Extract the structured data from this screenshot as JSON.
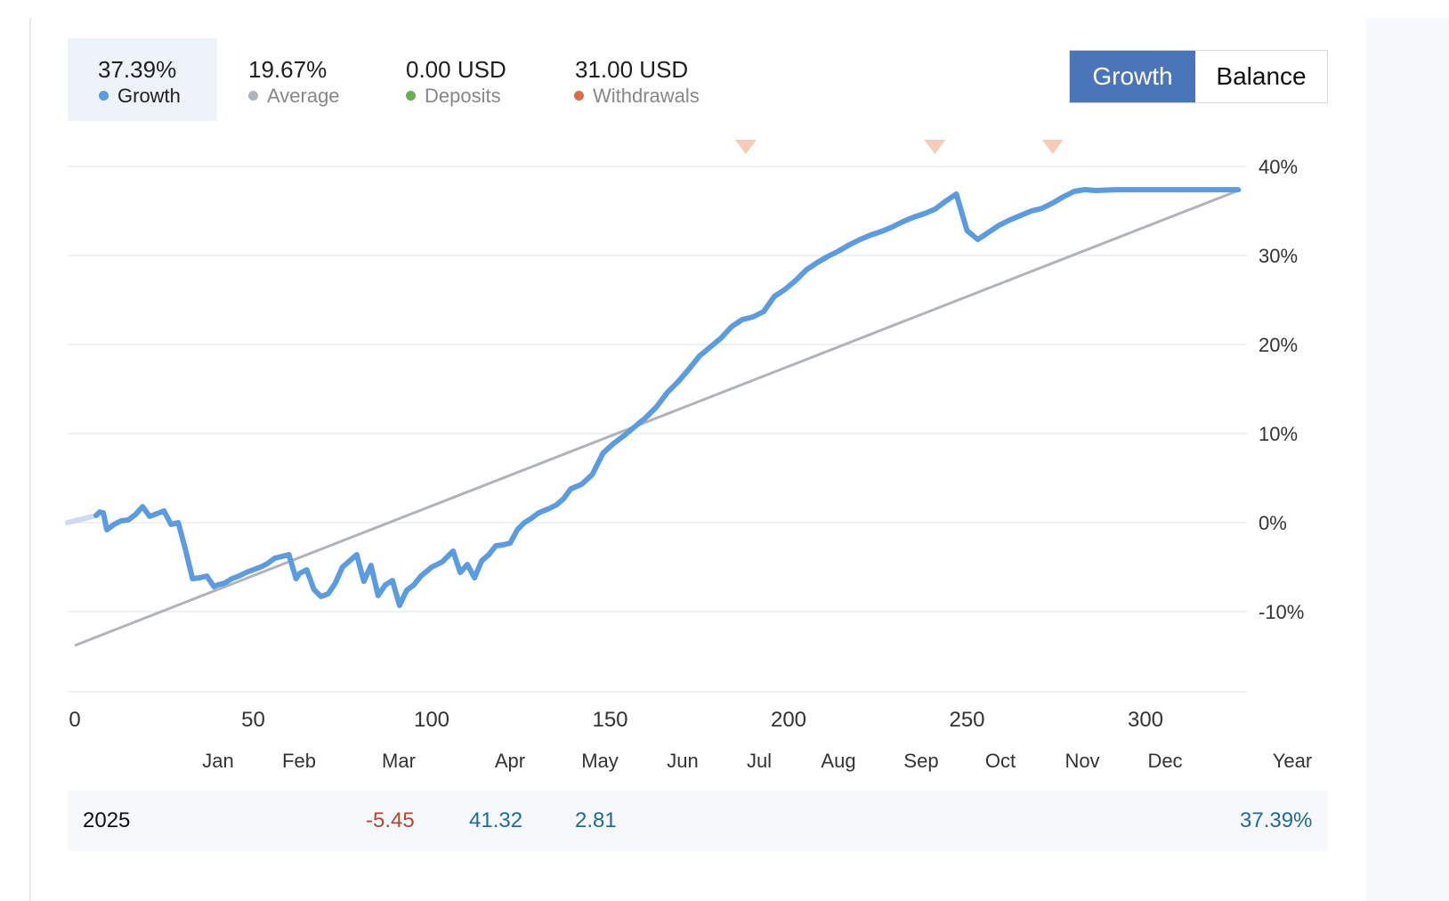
{
  "stats": [
    {
      "value": "37.39%",
      "label": "Growth",
      "color": "#5b9be2",
      "active": true
    },
    {
      "value": "19.67%",
      "label": "Average",
      "color": "#b0b3b8",
      "active": false
    },
    {
      "value": "0.00 USD",
      "label": "Deposits",
      "color": "#6ab04c",
      "active": false
    },
    {
      "value": "31.00 USD",
      "label": "Withdrawals",
      "color": "#e06a43",
      "active": false
    }
  ],
  "toggle": {
    "growth_label": "Growth",
    "balance_label": "Balance",
    "selected": "Growth"
  },
  "chart_data": {
    "type": "line",
    "x_ticks": [
      0,
      50,
      100,
      150,
      200,
      250,
      300
    ],
    "y_ticks": [
      "40%",
      "30%",
      "20%",
      "10%",
      "0%",
      "-10%"
    ],
    "y_tick_values": [
      40,
      30,
      20,
      10,
      0,
      -10
    ],
    "xlim": [
      0,
      329
    ],
    "ylim": [
      -19,
      40
    ],
    "grid": true,
    "colors": {
      "growth": "#5b9be2",
      "average": "#b0b3b8",
      "withdrawal_marker": "#f6cbb7"
    },
    "withdrawal_markers_x": [
      188,
      241,
      274
    ],
    "series": [
      {
        "name": "Growth",
        "x": [
          0,
          6,
          7,
          8,
          9,
          11,
          13,
          15,
          17,
          19,
          21,
          23,
          25,
          27,
          29,
          31,
          33,
          35,
          37,
          39,
          40,
          42,
          44,
          46,
          48,
          50,
          52,
          54,
          56,
          58,
          60,
          62,
          63,
          65,
          67,
          69,
          71,
          73,
          75,
          77,
          79,
          81,
          83,
          85,
          87,
          89,
          91,
          93,
          95,
          97,
          100,
          103,
          106,
          108,
          110,
          112,
          114,
          116,
          118,
          120,
          122,
          124,
          126,
          128,
          130,
          133,
          135,
          137,
          139,
          142,
          145,
          148,
          151,
          154,
          157,
          160,
          163,
          166,
          169,
          172,
          175,
          178,
          181,
          184,
          187,
          190,
          193,
          196,
          199,
          202,
          205,
          208,
          211,
          214,
          217,
          220,
          223,
          226,
          229,
          232,
          235,
          238,
          241,
          244,
          247,
          250,
          253,
          256,
          259,
          262,
          265,
          268,
          271,
          274,
          277,
          280,
          283,
          286,
          289,
          292,
          294,
          296,
          297,
          299,
          301,
          303,
          305,
          307,
          309,
          311,
          313,
          315,
          317,
          319,
          321,
          323,
          325,
          326
        ],
        "y": [
          0,
          0.8,
          1.2,
          1.1,
          -0.8,
          -0.2,
          0.2,
          0.3,
          0.9,
          1.8,
          0.7,
          1.0,
          1.3,
          -0.2,
          0.0,
          -3.0,
          -6.3,
          -6.2,
          -6.0,
          -7.2,
          -7.0,
          -6.8,
          -6.3,
          -6.0,
          -5.6,
          -5.3,
          -5.0,
          -4.6,
          -4.0,
          -3.8,
          -3.6,
          -6.3,
          -5.7,
          -5.3,
          -7.5,
          -8.3,
          -8.0,
          -6.8,
          -5.0,
          -4.3,
          -3.6,
          -6.6,
          -4.8,
          -8.2,
          -7.0,
          -6.5,
          -9.3,
          -7.6,
          -7.0,
          -6.0,
          -5.0,
          -4.4,
          -3.2,
          -5.6,
          -4.7,
          -6.2,
          -4.3,
          -3.6,
          -2.6,
          -2.5,
          -2.3,
          -0.8,
          0.0,
          0.5,
          1.1,
          1.6,
          2.0,
          2.7,
          3.8,
          4.3,
          5.4,
          7.8,
          8.9,
          9.8,
          10.8,
          11.8,
          13.0,
          14.6,
          15.8,
          17.2,
          18.7,
          19.7,
          20.7,
          22.0,
          22.8,
          23.1,
          23.7,
          25.4,
          26.2,
          27.2,
          28.4,
          29.2,
          29.9,
          30.5,
          31.2,
          31.8,
          32.3,
          32.7,
          33.2,
          33.8,
          34.3,
          34.7,
          35.2,
          36.1,
          36.9,
          32.8,
          31.8,
          32.6,
          33.4,
          34.0,
          34.5,
          35.0,
          35.3,
          35.9,
          36.6,
          37.2,
          37.4,
          37.3,
          37.35,
          37.39,
          37.39,
          37.39,
          37.39,
          37.39,
          37.39,
          37.39,
          37.39,
          37.39,
          37.39,
          37.39,
          37.39,
          37.39,
          37.39,
          37.39,
          37.39,
          37.39,
          37.39,
          37.39
        ]
      },
      {
        "name": "Average",
        "x": [
          0,
          326
        ],
        "y": [
          -13.8,
          37.3
        ]
      }
    ]
  },
  "months": [
    "Jan",
    "Feb",
    "Mar",
    "Apr",
    "May",
    "Jun",
    "Jul",
    "Aug",
    "Sep",
    "Oct",
    "Nov",
    "Dec",
    "Year"
  ],
  "year_row": {
    "year": "2025",
    "mar": "-5.45",
    "apr": "41.32",
    "may": "2.81",
    "total": "37.39%"
  }
}
